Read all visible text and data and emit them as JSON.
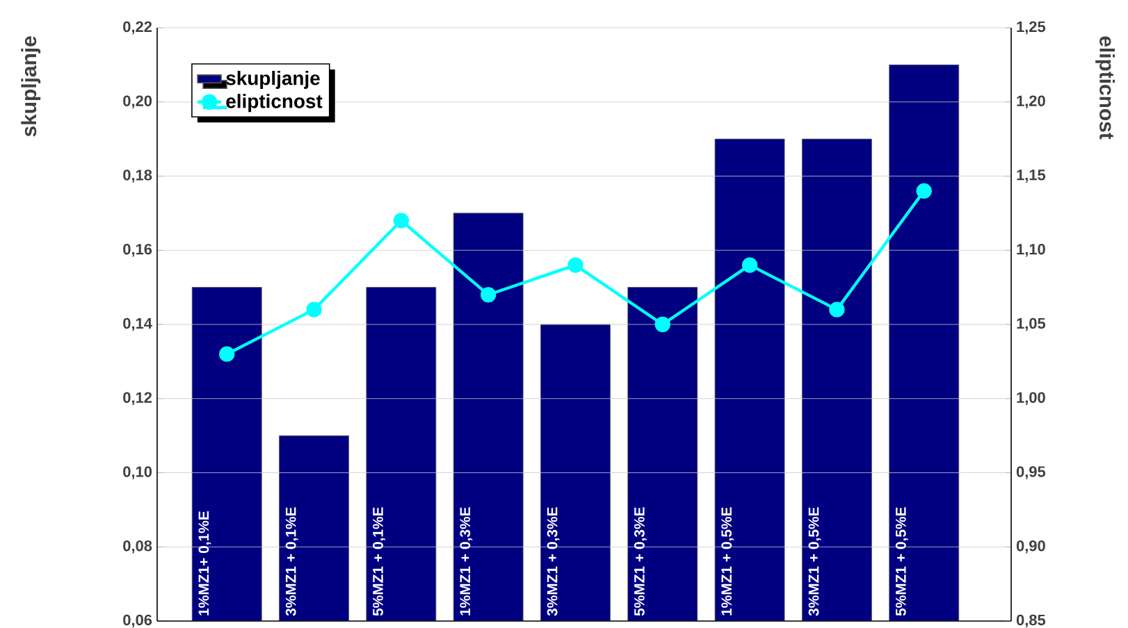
{
  "chart_data": {
    "type": "bar",
    "ylabel": "skupljanje",
    "y2label": "elipticnost",
    "categories": [
      "1%MZ1+ 0,1%E",
      "3%MZ1 + 0,1%E",
      "5%MZ1 + 0,1%E",
      "1%MZ1 + 0,3%E",
      "3%MZ1 + 0,3%E",
      "5%MZ1 + 0,3%E",
      "1%MZ1 + 0,5%E",
      "3%MZ1 + 0,5%E",
      "5%MZ1 + 0,5%E"
    ],
    "series": [
      {
        "name": "skupljanje",
        "color": "#000080",
        "values": [
          0.15,
          0.11,
          0.15,
          0.17,
          0.14,
          0.15,
          0.19,
          0.19,
          0.21
        ]
      },
      {
        "name": "elipticnost",
        "type": "line",
        "axis": "y2",
        "color": "#00ffff",
        "marker": "circle",
        "line_style": "solid",
        "values": [
          1.03,
          1.06,
          1.12,
          1.07,
          1.09,
          1.05,
          1.09,
          1.06,
          1.14
        ]
      }
    ],
    "ylim": [
      0.06,
      0.22
    ],
    "yticks": [
      {
        "value": 0.06,
        "label": "0,06"
      },
      {
        "value": 0.08,
        "label": "0,08"
      },
      {
        "value": 0.1,
        "label": "0,10"
      },
      {
        "value": 0.12,
        "label": "0,12"
      },
      {
        "value": 0.14,
        "label": "0,14"
      },
      {
        "value": 0.16,
        "label": "0,16"
      },
      {
        "value": 0.18,
        "label": "0,18"
      },
      {
        "value": 0.2,
        "label": "0,20"
      },
      {
        "value": 0.22,
        "label": "0,22"
      }
    ],
    "y2lim": [
      0.85,
      1.25
    ],
    "y2ticks": [
      {
        "value": 0.85,
        "label": "0,85"
      },
      {
        "value": 0.9,
        "label": "0,90"
      },
      {
        "value": 0.95,
        "label": "0,95"
      },
      {
        "value": 1.0,
        "label": "1,00"
      },
      {
        "value": 1.05,
        "label": "1,05"
      },
      {
        "value": 1.1,
        "label": "1,10"
      },
      {
        "value": 1.15,
        "label": "1,15"
      },
      {
        "value": 1.2,
        "label": "1,20"
      },
      {
        "value": 1.25,
        "label": "1,25"
      }
    ],
    "grid": "y",
    "legend": "top left"
  }
}
